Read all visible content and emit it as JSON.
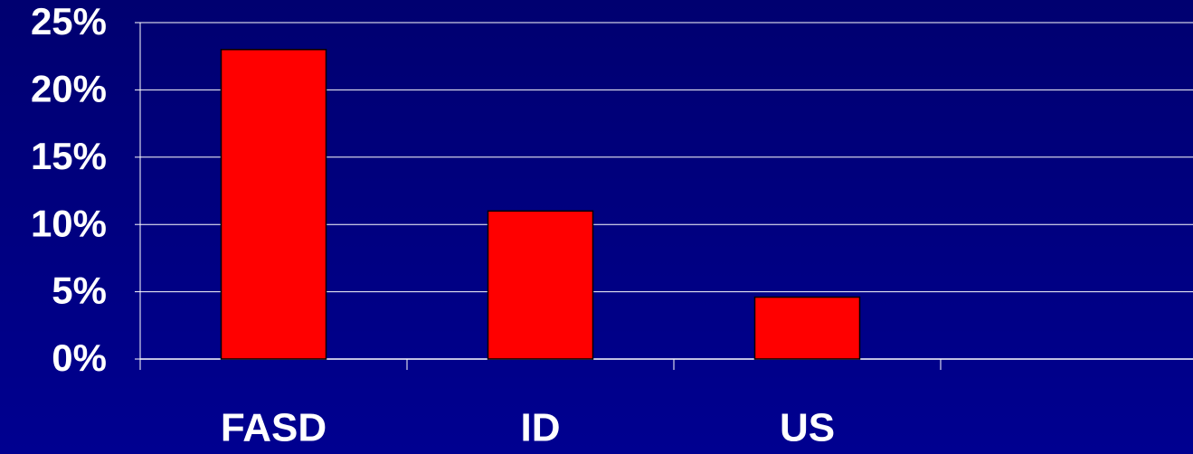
{
  "chart_data": {
    "type": "bar",
    "categories": [
      "FASD",
      "ID",
      "US",
      null
    ],
    "values": [
      23,
      11,
      4.6,
      null
    ],
    "color": "#ff0000",
    "ylim": [
      0,
      25
    ],
    "yticks": [
      {
        "value": 0,
        "label": "0%"
      },
      {
        "value": 5,
        "label": "5%"
      },
      {
        "value": 10,
        "label": "10%"
      },
      {
        "value": 15,
        "label": "15%"
      },
      {
        "value": 20,
        "label": "20%"
      },
      {
        "value": 25,
        "label": "25%"
      }
    ],
    "grid": true
  }
}
